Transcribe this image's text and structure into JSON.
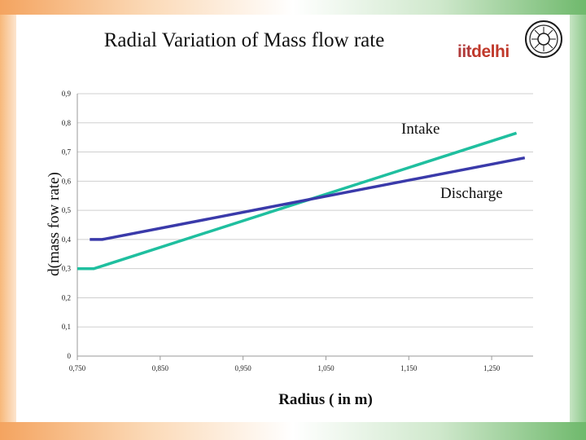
{
  "slide": {
    "title": "Radial Variation of Mass flow rate",
    "brand_prefix": "iit",
    "brand_suffix": "delhi"
  },
  "colors": {
    "intake": "#1fbf9f",
    "discharge": "#3a3aaa",
    "grid": "#cfcfcf",
    "axis": "#9a9a9a"
  },
  "chart_data": {
    "type": "line",
    "title": "Radial Variation of Mass flow rate",
    "xlabel": "Radius ( in m)",
    "ylabel": "d(mass fow rate)",
    "xlim": [
      0.75,
      1.3
    ],
    "ylim": [
      0,
      0.9
    ],
    "grid": true,
    "x_ticks": [
      0.75,
      0.85,
      0.95,
      1.05,
      1.15,
      1.25
    ],
    "x_tick_labels": [
      "0,750",
      "0,850",
      "0,950",
      "1,050",
      "1,150",
      "1,250"
    ],
    "y_ticks": [
      0,
      0.1,
      0.2,
      0.3,
      0.4,
      0.5,
      0.6,
      0.7,
      0.8,
      0.9
    ],
    "y_tick_labels": [
      "0",
      "0,1",
      "0,2",
      "0,3",
      "0,4",
      "0,5",
      "0,6",
      "0,7",
      "0,8",
      "0,9"
    ],
    "series": [
      {
        "name": "Intake",
        "color": "#1fbf9f",
        "x": [
          0.75,
          0.77,
          1.28
        ],
        "y": [
          0.3,
          0.3,
          0.765
        ]
      },
      {
        "name": "Discharge",
        "color": "#3a3aaa",
        "x": [
          0.765,
          0.78,
          1.29
        ],
        "y": [
          0.4,
          0.4,
          0.68
        ]
      }
    ]
  }
}
